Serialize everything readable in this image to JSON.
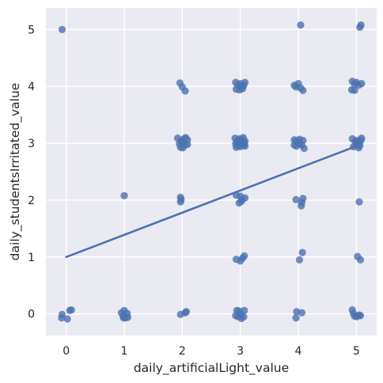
{
  "chart_data": {
    "type": "scatter",
    "title": "",
    "xlabel": "daily_artificialLight_value",
    "ylabel": "daily_studentsIrritated_value",
    "xlim": [
      -0.35,
      5.35
    ],
    "ylim": [
      -0.38,
      5.38
    ],
    "xticks": [
      0,
      1,
      2,
      3,
      4,
      5
    ],
    "yticks": [
      0,
      1,
      2,
      3,
      4,
      5
    ],
    "grid": true,
    "background_color": "#eaeaf2",
    "point_color": "#4c72b0",
    "line_color": "#4c72b0",
    "points": [
      {
        "x": -0.07,
        "y": 5.0
      },
      {
        "x": -0.08,
        "y": -0.07
      },
      {
        "x": -0.07,
        "y": -0.01
      },
      {
        "x": 0.02,
        "y": -0.09
      },
      {
        "x": 0.06,
        "y": 0.06
      },
      {
        "x": 0.09,
        "y": 0.07
      },
      {
        "x": 0.95,
        "y": 0.02
      },
      {
        "x": 0.98,
        "y": -0.04
      },
      {
        "x": 1.0,
        "y": 0.06
      },
      {
        "x": 1.02,
        "y": -0.07
      },
      {
        "x": 1.05,
        "y": 0.01
      },
      {
        "x": 0.99,
        "y": -0.07
      },
      {
        "x": 1.06,
        "y": -0.06
      },
      {
        "x": 1.0,
        "y": 2.08
      },
      {
        "x": 1.96,
        "y": 4.06
      },
      {
        "x": 2.0,
        "y": 3.99
      },
      {
        "x": 2.05,
        "y": 3.92
      },
      {
        "x": 1.92,
        "y": 3.09
      },
      {
        "x": 1.98,
        "y": 3.04
      },
      {
        "x": 2.03,
        "y": 3.08
      },
      {
        "x": 2.06,
        "y": 3.1
      },
      {
        "x": 2.09,
        "y": 3.06
      },
      {
        "x": 1.95,
        "y": 2.99
      },
      {
        "x": 2.0,
        "y": 3.02
      },
      {
        "x": 2.05,
        "y": 2.97
      },
      {
        "x": 2.09,
        "y": 2.98
      },
      {
        "x": 1.97,
        "y": 2.93
      },
      {
        "x": 2.01,
        "y": 2.92
      },
      {
        "x": 1.97,
        "y": 2.05
      },
      {
        "x": 1.98,
        "y": 2.01
      },
      {
        "x": 1.97,
        "y": 1.97
      },
      {
        "x": 2.07,
        "y": 0.04
      },
      {
        "x": 2.05,
        "y": 0.02
      },
      {
        "x": 1.97,
        "y": -0.01
      },
      {
        "x": 2.92,
        "y": 4.07
      },
      {
        "x": 2.96,
        "y": 4.02
      },
      {
        "x": 3.0,
        "y": 4.05
      },
      {
        "x": 3.04,
        "y": 4.01
      },
      {
        "x": 3.08,
        "y": 4.07
      },
      {
        "x": 2.93,
        "y": 3.95
      },
      {
        "x": 2.99,
        "y": 3.94
      },
      {
        "x": 3.04,
        "y": 3.96
      },
      {
        "x": 3.06,
        "y": 4.02
      },
      {
        "x": 2.91,
        "y": 3.09
      },
      {
        "x": 2.94,
        "y": 3.03
      },
      {
        "x": 2.96,
        "y": 2.96
      },
      {
        "x": 2.99,
        "y": 3.08
      },
      {
        "x": 3.02,
        "y": 3.01
      },
      {
        "x": 3.05,
        "y": 3.1
      },
      {
        "x": 3.08,
        "y": 3.04
      },
      {
        "x": 2.93,
        "y": 2.93
      },
      {
        "x": 3.0,
        "y": 2.94
      },
      {
        "x": 3.05,
        "y": 2.97
      },
      {
        "x": 3.08,
        "y": 2.95
      },
      {
        "x": 2.97,
        "y": 3.05
      },
      {
        "x": 3.03,
        "y": 3.06
      },
      {
        "x": 2.92,
        "y": 2.99
      },
      {
        "x": 3.07,
        "y": 3.0
      },
      {
        "x": 2.93,
        "y": 2.09
      },
      {
        "x": 3.0,
        "y": 2.07
      },
      {
        "x": 3.03,
        "y": 2.01
      },
      {
        "x": 3.08,
        "y": 2.04
      },
      {
        "x": 2.98,
        "y": 1.95
      },
      {
        "x": 3.02,
        "y": 1.98
      },
      {
        "x": 2.93,
        "y": 0.96
      },
      {
        "x": 3.0,
        "y": 0.93
      },
      {
        "x": 3.04,
        "y": 0.98
      },
      {
        "x": 3.07,
        "y": 1.02
      },
      {
        "x": 2.94,
        "y": 0.06
      },
      {
        "x": 2.98,
        "y": 0.05
      },
      {
        "x": 3.07,
        "y": 0.06
      },
      {
        "x": 2.92,
        "y": -0.03
      },
      {
        "x": 2.96,
        "y": -0.05
      },
      {
        "x": 3.01,
        "y": -0.01
      },
      {
        "x": 3.06,
        "y": -0.05
      },
      {
        "x": 3.02,
        "y": -0.08
      },
      {
        "x": 4.04,
        "y": 5.08
      },
      {
        "x": 3.93,
        "y": 4.02
      },
      {
        "x": 3.96,
        "y": 3.99
      },
      {
        "x": 4.0,
        "y": 4.05
      },
      {
        "x": 4.04,
        "y": 3.97
      },
      {
        "x": 4.08,
        "y": 3.93
      },
      {
        "x": 3.93,
        "y": 3.06
      },
      {
        "x": 3.97,
        "y": 3.04
      },
      {
        "x": 4.02,
        "y": 3.07
      },
      {
        "x": 4.08,
        "y": 3.05
      },
      {
        "x": 3.93,
        "y": 2.97
      },
      {
        "x": 3.97,
        "y": 2.95
      },
      {
        "x": 4.02,
        "y": 2.99
      },
      {
        "x": 4.06,
        "y": 2.97
      },
      {
        "x": 4.1,
        "y": 2.91
      },
      {
        "x": 3.96,
        "y": 2.01
      },
      {
        "x": 4.08,
        "y": 2.03
      },
      {
        "x": 4.06,
        "y": 1.96
      },
      {
        "x": 4.05,
        "y": 1.9
      },
      {
        "x": 4.07,
        "y": 1.08
      },
      {
        "x": 4.02,
        "y": 0.95
      },
      {
        "x": 3.97,
        "y": 0.04
      },
      {
        "x": 4.06,
        "y": 0.02
      },
      {
        "x": 3.96,
        "y": -0.07
      },
      {
        "x": 5.08,
        "y": 5.08
      },
      {
        "x": 5.06,
        "y": 5.04
      },
      {
        "x": 4.93,
        "y": 4.09
      },
      {
        "x": 4.97,
        "y": 4.04
      },
      {
        "x": 5.0,
        "y": 4.07
      },
      {
        "x": 5.04,
        "y": 4.02
      },
      {
        "x": 5.09,
        "y": 4.05
      },
      {
        "x": 4.92,
        "y": 3.94
      },
      {
        "x": 4.97,
        "y": 3.93
      },
      {
        "x": 4.93,
        "y": 3.08
      },
      {
        "x": 4.98,
        "y": 3.03
      },
      {
        "x": 5.01,
        "y": 3.05
      },
      {
        "x": 5.05,
        "y": 3.0
      },
      {
        "x": 5.09,
        "y": 3.09
      },
      {
        "x": 5.08,
        "y": 3.05
      },
      {
        "x": 4.95,
        "y": 2.94
      },
      {
        "x": 5.0,
        "y": 2.98
      },
      {
        "x": 5.04,
        "y": 2.92
      },
      {
        "x": 5.06,
        "y": 2.96
      },
      {
        "x": 5.05,
        "y": 1.97
      },
      {
        "x": 5.02,
        "y": 1.01
      },
      {
        "x": 5.07,
        "y": 0.95
      },
      {
        "x": 4.93,
        "y": 0.07
      },
      {
        "x": 4.95,
        "y": 0.01
      },
      {
        "x": 4.97,
        "y": -0.04
      },
      {
        "x": 5.01,
        "y": -0.05
      },
      {
        "x": 5.05,
        "y": -0.02
      },
      {
        "x": 5.07,
        "y": -0.03
      }
    ],
    "regression_line": {
      "x": [
        0,
        5
      ],
      "y": [
        1.0,
        2.95
      ]
    }
  }
}
